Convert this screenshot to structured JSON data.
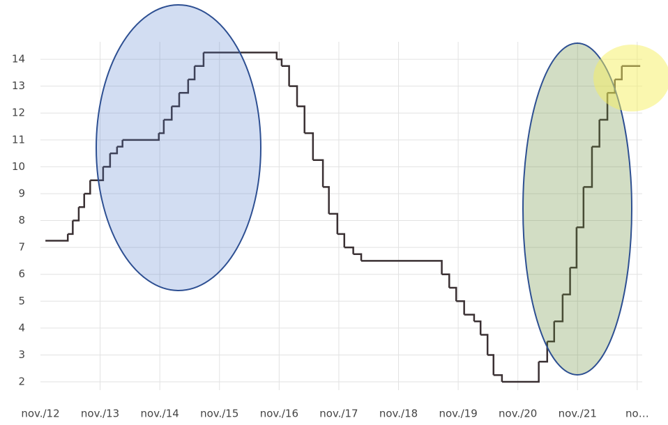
{
  "chart_data": {
    "type": "line",
    "step": true,
    "color": "#3a3033",
    "grid": true,
    "x": [
      1,
      5.5,
      6.5,
      7.7,
      8.8,
      10,
      12.6,
      14,
      15.4,
      16.5,
      23.8,
      24.8,
      26.4,
      27.9,
      29.7,
      31,
      32.8,
      47.5,
      48.5,
      50,
      51.6,
      53.1,
      54.8,
      56.8,
      58,
      59.7,
      61.1,
      62.9,
      64.5,
      80.7,
      82.2,
      83.6,
      85.2,
      87.2,
      88.5,
      89.9,
      91.1,
      92.8,
      100.2,
      101.9,
      103.3,
      105,
      106.5,
      107.8,
      109.2,
      110.9,
      112.4,
      114,
      115.5,
      116.9,
      120.6
    ],
    "values": [
      7.25,
      7.5,
      8,
      8.5,
      9,
      9.5,
      10,
      10.5,
      10.75,
      11,
      11.25,
      11.75,
      12.25,
      12.75,
      13.25,
      13.75,
      14.25,
      14,
      13.75,
      13,
      12.25,
      11.25,
      10.25,
      9.25,
      8.25,
      7.5,
      7,
      6.75,
      6.5,
      6,
      5.5,
      5,
      4.5,
      4.25,
      3.75,
      3,
      2.25,
      2,
      2.75,
      3.5,
      4.25,
      5.25,
      6.25,
      7.75,
      9.25,
      10.75,
      11.75,
      12.75,
      13.25,
      13.75,
      13.75
    ],
    "xlim": [
      0,
      121
    ],
    "xticks": [
      {
        "value": 0,
        "label": "nov./12"
      },
      {
        "value": 12,
        "label": "nov./13"
      },
      {
        "value": 24,
        "label": "nov./14"
      },
      {
        "value": 36,
        "label": "nov./15"
      },
      {
        "value": 48,
        "label": "nov./16"
      },
      {
        "value": 60,
        "label": "nov./17"
      },
      {
        "value": 72,
        "label": "nov./18"
      },
      {
        "value": 84,
        "label": "nov./19"
      },
      {
        "value": 96,
        "label": "nov./20"
      },
      {
        "value": 108,
        "label": "nov./21"
      },
      {
        "value": 120,
        "label": "no…"
      }
    ],
    "ylim": [
      1.69,
      14.65
    ],
    "yticks": [
      2,
      3,
      4,
      5,
      6,
      7,
      8,
      9,
      10,
      11,
      12,
      13,
      14
    ]
  }
}
